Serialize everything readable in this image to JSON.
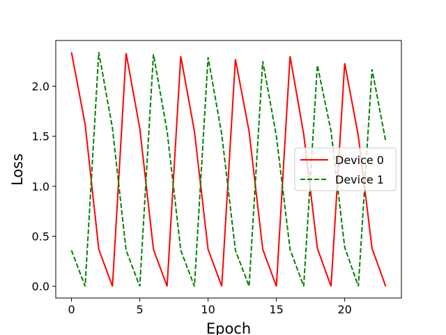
{
  "chart_data": {
    "type": "line",
    "title": "",
    "xlabel": "Epoch",
    "ylabel": "Loss",
    "xlim": [
      -1.15,
      24.15
    ],
    "ylim": [
      -0.117,
      2.457
    ],
    "xticks": [
      0,
      5,
      10,
      15,
      20
    ],
    "xtick_labels": [
      "0",
      "5",
      "10",
      "15",
      "20"
    ],
    "yticks": [
      0.0,
      0.5,
      1.0,
      1.5,
      2.0
    ],
    "ytick_labels": [
      "0.0",
      "0.5",
      "1.0",
      "1.5",
      "2.0"
    ],
    "grid": false,
    "legend_position": "center-right",
    "x": [
      0,
      1,
      2,
      3,
      4,
      5,
      6,
      7,
      8,
      9,
      10,
      11,
      12,
      13,
      14,
      15,
      16,
      17,
      18,
      19,
      20,
      21,
      22,
      23
    ],
    "series": [
      {
        "name": "Device 0",
        "color": "#ff0000",
        "linestyle": "solid",
        "values": [
          2.34,
          1.62,
          0.37,
          0.0,
          2.33,
          1.58,
          0.37,
          0.0,
          2.3,
          1.55,
          0.37,
          0.0,
          2.27,
          1.55,
          0.37,
          0.0,
          2.3,
          1.52,
          0.38,
          0.0,
          2.23,
          1.5,
          0.38,
          0.0
        ]
      },
      {
        "name": "Device 1",
        "color": "#008000",
        "linestyle": "dashed",
        "values": [
          0.36,
          0.0,
          2.34,
          1.58,
          0.36,
          0.0,
          2.32,
          1.55,
          0.36,
          0.0,
          2.29,
          1.52,
          0.36,
          0.0,
          2.25,
          1.5,
          0.37,
          0.0,
          2.21,
          1.55,
          0.39,
          0.0,
          2.17,
          1.45
        ]
      }
    ]
  }
}
